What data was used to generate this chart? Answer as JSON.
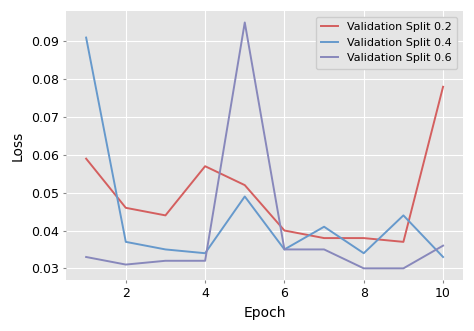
{
  "epochs": [
    1,
    2,
    3,
    4,
    5,
    6,
    7,
    8,
    9,
    10
  ],
  "val_split_02": [
    0.059,
    0.046,
    0.044,
    0.057,
    0.052,
    0.04,
    0.038,
    0.038,
    0.037,
    0.078
  ],
  "val_split_04": [
    0.091,
    0.037,
    0.035,
    0.034,
    0.049,
    0.035,
    0.041,
    0.034,
    0.044,
    0.033
  ],
  "val_split_06": [
    0.033,
    0.031,
    0.032,
    0.032,
    0.095,
    0.035,
    0.035,
    0.03,
    0.03,
    0.036
  ],
  "color_02": "#d45f5f",
  "color_04": "#6699cc",
  "color_06": "#8888bb",
  "xlabel": "Epoch",
  "ylabel": "Loss",
  "ylim_min": 0.027,
  "ylim_max": 0.098,
  "legend_labels": [
    "Validation Split 0.2",
    "Validation Split 0.4",
    "Validation Split 0.6"
  ],
  "bg_color": "#e5e5e5",
  "grid_color": "#ffffff",
  "linewidth": 1.4,
  "ytick_step": 0.01,
  "ytick_min": 0.03,
  "ytick_max": 0.09
}
